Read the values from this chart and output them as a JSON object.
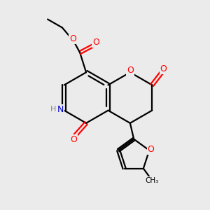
{
  "bg_color": "#EBEBEB",
  "bond_color": "#000000",
  "O_color": "#FF0000",
  "N_color": "#0000CC",
  "H_color": "#888888",
  "bond_width": 1.6,
  "dbo": 0.12,
  "figsize": [
    3.0,
    3.0
  ],
  "dpi": 100,
  "xlim": [
    0,
    10
  ],
  "ylim": [
    0,
    10
  ]
}
